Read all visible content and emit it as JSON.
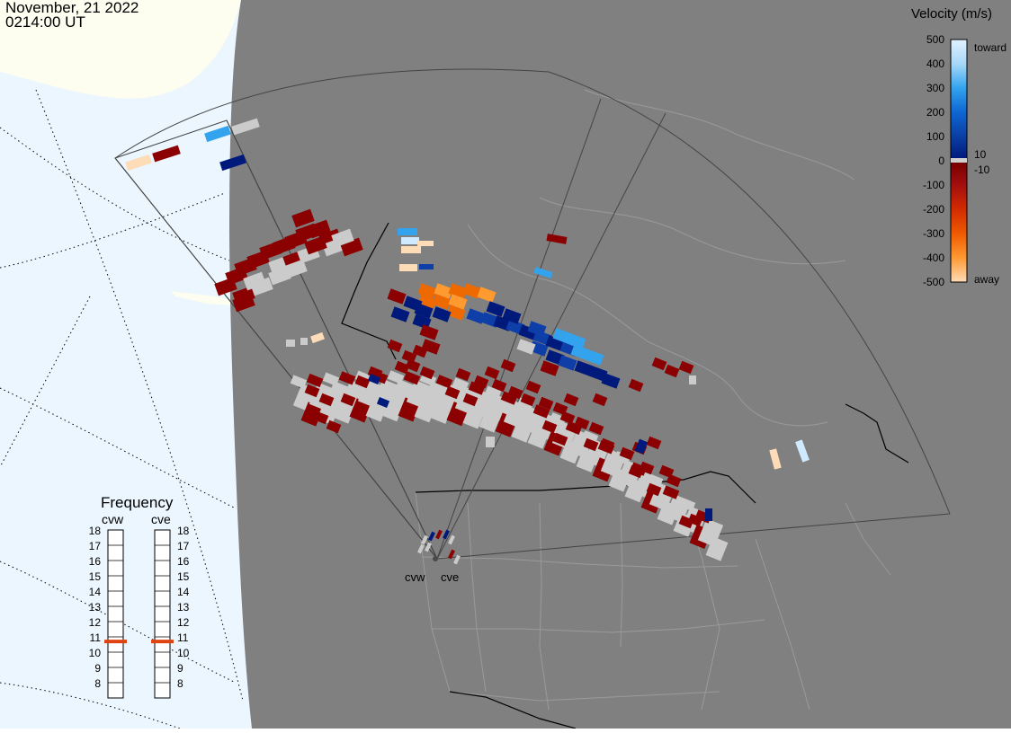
{
  "header": {
    "date": "November, 21 2022",
    "time": "0214:00 UT"
  },
  "colors": {
    "land": "#808080",
    "ocean": "#ebf6ff",
    "ice": "#fdfdf0",
    "ground_scatter": "#cbcbcb",
    "radar_site": "#4a4a4a"
  },
  "legend": {
    "title": "Velocity (m/s)",
    "ticks": [
      "500",
      "400",
      "300",
      "200",
      "100",
      "0",
      "-100",
      "-200",
      "-300",
      "-400",
      "-500"
    ],
    "toward_label": "toward",
    "away_label": "away",
    "plus_ten": "10",
    "minus_ten": "-10",
    "stops": [
      {
        "v": 500,
        "color": "#e2f1ff"
      },
      {
        "v": 400,
        "color": "#a7d8f8"
      },
      {
        "v": 300,
        "color": "#33a3ee"
      },
      {
        "v": 200,
        "color": "#0e66d2"
      },
      {
        "v": 100,
        "color": "#0a3fa4"
      },
      {
        "v": 10,
        "color": "#001a7c"
      },
      {
        "v": -10,
        "color": "#7a0000"
      },
      {
        "v": -100,
        "color": "#a30f0f"
      },
      {
        "v": -200,
        "color": "#d22b00"
      },
      {
        "v": -300,
        "color": "#ee5a00"
      },
      {
        "v": -400,
        "color": "#ff9933"
      },
      {
        "v": -500,
        "color": "#ffdcb8"
      }
    ]
  },
  "frequency": {
    "title": "Frequency",
    "radars": [
      "cvw",
      "cve"
    ],
    "levels": [
      "18",
      "17",
      "16",
      "15",
      "14",
      "13",
      "12",
      "11",
      "10",
      "9",
      "8"
    ],
    "selected": [
      10.7,
      10.7
    ],
    "marker_color": "#dd4411"
  },
  "radar_sites": [
    "cvw",
    "cve"
  ]
}
